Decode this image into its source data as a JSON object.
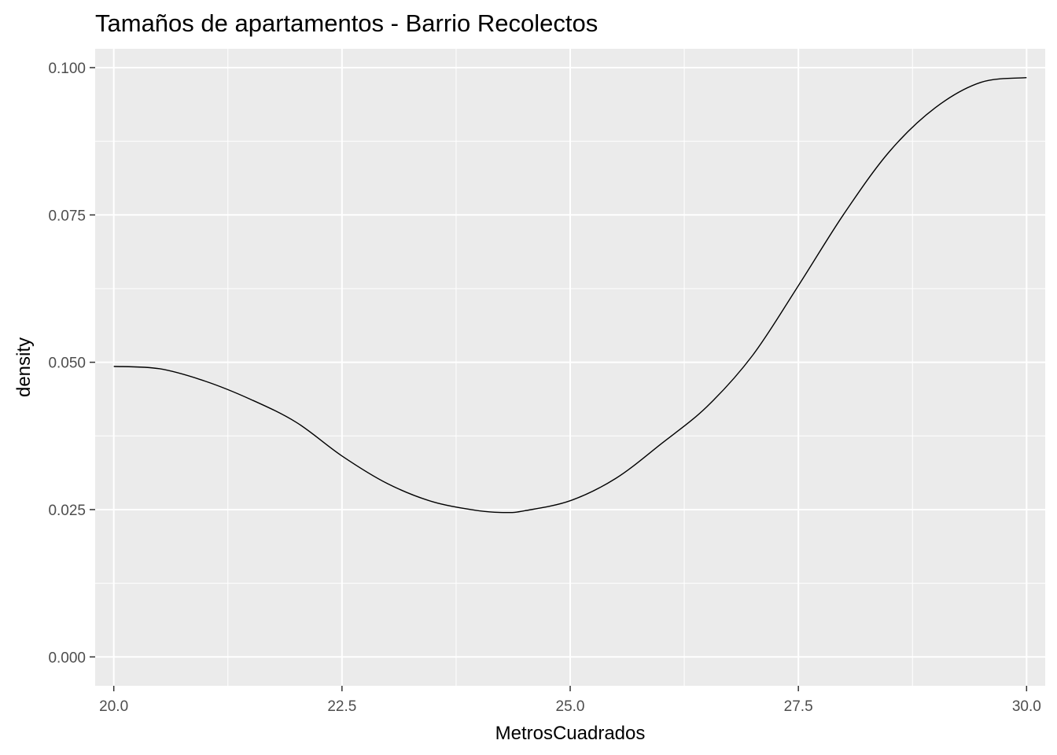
{
  "chart_data": {
    "type": "line",
    "geom": "density",
    "title": "Tamaños de apartamentos - Barrio Recolectos",
    "xlabel": "MetrosCuadrados",
    "ylabel": "density",
    "xlim": [
      19.796,
      30.204
    ],
    "ylim": [
      -0.0049,
      0.1032
    ],
    "x_ticks": [
      20.0,
      22.5,
      25.0,
      27.5,
      30.0
    ],
    "x_tick_labels": [
      "20.0",
      "22.5",
      "25.0",
      "27.5",
      "30.0"
    ],
    "y_ticks": [
      0.0,
      0.025,
      0.05,
      0.075,
      0.1
    ],
    "y_tick_labels": [
      "0.000",
      "0.025",
      "0.050",
      "0.075",
      "0.100"
    ],
    "grid": true,
    "colors": {
      "panel_background": "#ebebeb",
      "grid_major": "#ffffff",
      "line": "#000000",
      "tick_label": "#4d4d4d"
    },
    "series": [
      {
        "x": [
          20.0,
          20.5,
          21.0,
          21.5,
          22.0,
          22.5,
          23.0,
          23.5,
          24.0,
          24.3,
          24.5,
          25.0,
          25.5,
          26.0,
          26.5,
          27.0,
          27.5,
          28.0,
          28.5,
          29.0,
          29.5,
          30.0
        ],
        "values": [
          0.0493,
          0.0489,
          0.0468,
          0.0437,
          0.0398,
          0.0341,
          0.0294,
          0.0263,
          0.0248,
          0.0245,
          0.0248,
          0.0265,
          0.0303,
          0.0362,
          0.0425,
          0.0512,
          0.063,
          0.0752,
          0.0858,
          0.0932,
          0.0975,
          0.0983
        ]
      }
    ]
  }
}
